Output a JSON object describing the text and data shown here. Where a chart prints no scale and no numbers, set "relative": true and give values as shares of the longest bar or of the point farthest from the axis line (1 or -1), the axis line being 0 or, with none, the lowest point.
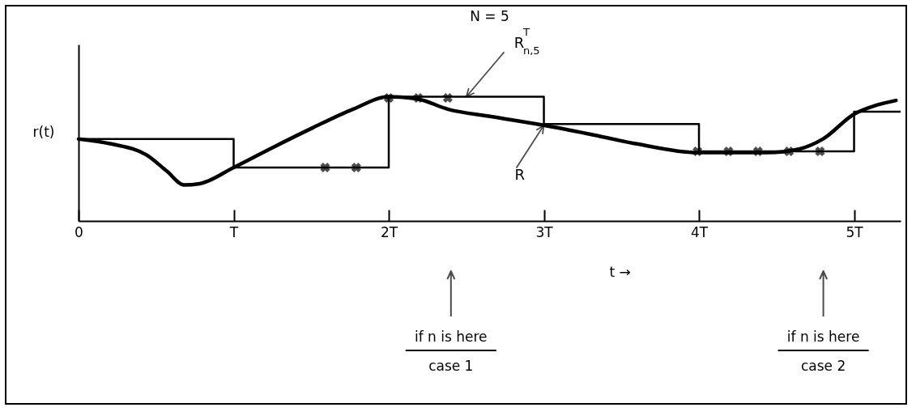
{
  "chart_data": {
    "type": "line",
    "title": "N = 5",
    "xlabel": "t →",
    "ylabel": "r(t)",
    "relative": true,
    "xlim": [
      0,
      5.3
    ],
    "xticks": [
      {
        "value": 0,
        "label": "0"
      },
      {
        "value": 1,
        "label": "T"
      },
      {
        "value": 2,
        "label": "2T"
      },
      {
        "value": 3,
        "label": "3T"
      },
      {
        "value": 4,
        "label": "4T"
      },
      {
        "value": 5,
        "label": "5T"
      }
    ],
    "legend": false,
    "series": [
      {
        "name": "R$^{T}$$_{n,5}$",
        "type": "step",
        "color": "#000000",
        "x": [
          0,
          1,
          2,
          3,
          4,
          5,
          5.3
        ],
        "values": [
          0.66,
          0.43,
          1.0,
          0.78,
          0.56,
          0.88,
          0.88
        ]
      },
      {
        "name": "R",
        "type": "line",
        "color": "#000000",
        "x": [
          0,
          0.21,
          0.44,
          0.57,
          0.68,
          0.78,
          1.0,
          1.25,
          1.51,
          1.77,
          2.0,
          2.19,
          2.38,
          2.66,
          3.0,
          3.29,
          3.6,
          3.99,
          4.23,
          4.44,
          4.65,
          4.8,
          5.0,
          5.14,
          5.27
        ],
        "values": [
          0.66,
          0.62,
          0.53,
          0.4,
          0.29,
          0.3,
          0.43,
          0.59,
          0.75,
          0.9,
          1.0,
          0.98,
          0.9,
          0.84,
          0.77,
          0.7,
          0.62,
          0.55,
          0.55,
          0.55,
          0.58,
          0.66,
          0.86,
          0.93,
          0.97
        ]
      },
      {
        "type": "scatter",
        "marker": "cross",
        "color": "#000000",
        "x": [
          1.59,
          1.79,
          2.0,
          2.19,
          2.38,
          3.99,
          4.19,
          4.38,
          4.58,
          4.78
        ],
        "values": [
          0.43,
          0.43,
          0.99,
          0.99,
          0.99,
          0.56,
          0.56,
          0.56,
          0.56,
          0.56
        ]
      }
    ],
    "annotations": [
      "if n is here",
      "case 1",
      "if n is here",
      "case 2"
    ]
  }
}
